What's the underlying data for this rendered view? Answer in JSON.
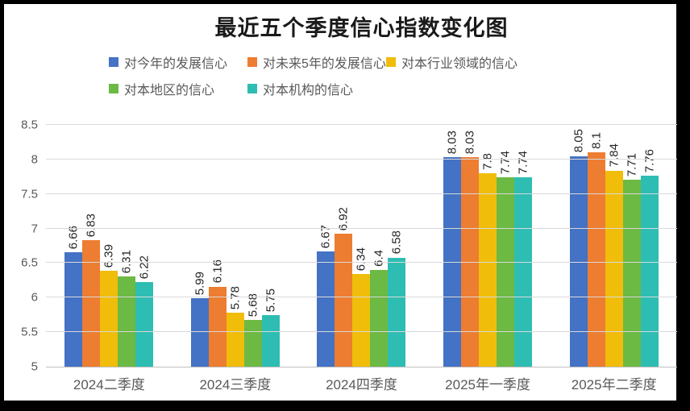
{
  "frame": {
    "background": "#ffffff",
    "border_color": "#000000"
  },
  "chart_data": {
    "type": "bar",
    "title": "最近五个季度信心指数变化图",
    "categories": [
      "2024二季度",
      "2024三季度",
      "2024四季度",
      "2025年一季度",
      "2025年二季度"
    ],
    "series": [
      {
        "name": "对今年的发展信心",
        "color": "#4472C4",
        "values": [
          6.66,
          5.99,
          6.67,
          8.03,
          8.05
        ]
      },
      {
        "name": "对未来5年的发展信心",
        "color": "#ED7D31",
        "values": [
          6.83,
          6.16,
          6.92,
          8.03,
          8.1
        ]
      },
      {
        "name": "对本行业领域的信心",
        "color": "#F0BD0B",
        "values": [
          6.39,
          5.78,
          6.34,
          7.8,
          7.84
        ]
      },
      {
        "name": "对本地区的信心",
        "color": "#6CB944",
        "values": [
          6.31,
          5.68,
          6.4,
          7.74,
          7.71
        ]
      },
      {
        "name": "对本机构的信心",
        "color": "#2EBDB3",
        "values": [
          6.22,
          5.75,
          6.58,
          7.74,
          7.76
        ]
      }
    ],
    "xlabel": "",
    "ylabel": "",
    "ylim": [
      5,
      8.5
    ],
    "yticks": [
      "5",
      "5.5",
      "6",
      "6.5",
      "7",
      "7.5",
      "8",
      "8.5"
    ],
    "grid": true,
    "gridline_color": "#d9d9d9",
    "axis_line_color": "#bfbfbf",
    "axis_text_color": "#595959",
    "data_labels": "rotated-vertical",
    "legend_position": "top",
    "legend_rows": [
      [
        0,
        1,
        2
      ],
      [
        3,
        4
      ]
    ]
  }
}
